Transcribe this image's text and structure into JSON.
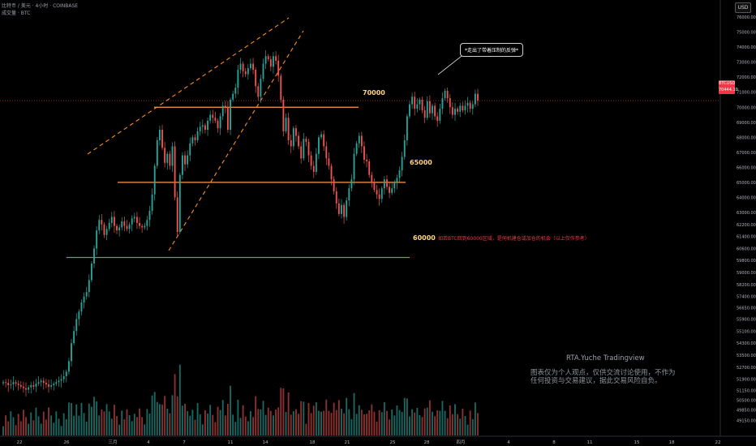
{
  "header": {
    "line1": "比特币 / 美元 · 4小时 · COINBASE",
    "line2": "成交量 · BTC"
  },
  "currency_button": "USD",
  "price_tag": {
    "symbol": "BTCUSD",
    "price": "70444.10",
    "countdown": "11:48"
  },
  "callout_text": "*走出了带着压制的反弹*",
  "levels": [
    {
      "label": "70000",
      "value": 70000
    },
    {
      "label": "65000",
      "value": 65000
    },
    {
      "label": "60000",
      "value": 60000
    }
  ],
  "level_note": "如若BTC回到60000区域，是伺机建仓或加仓的机会（以上仅作参考）",
  "watermark": {
    "title": "RTA.Yuche   Tradingview",
    "body": "图表仅为个人观点，仅供交流讨论使用，不作为任何投资与交易建议，据此交易风险自负。"
  },
  "colors": {
    "up": "#26a69a",
    "down": "#ef5350",
    "level_line": "#ff9a4d",
    "support_line": "#4caf50",
    "trend_line": "#ff8c1a",
    "price_line": "#f23645"
  },
  "chart_data": {
    "type": "candlestick",
    "title": "",
    "xlabel": "",
    "ylabel": "",
    "x_ticks": [
      "22",
      "26",
      "三月",
      "4",
      "7",
      "11",
      "14",
      "18",
      "21",
      "25",
      "28",
      "四月",
      "4",
      "8",
      "11",
      "15",
      "18",
      "22"
    ],
    "y_ticks": [
      76000,
      75000,
      74000,
      73000,
      72000,
      71000,
      70000,
      69000,
      68000,
      67000,
      66000,
      65000,
      64000,
      63000,
      62200,
      61400,
      60600,
      59800,
      59000,
      58200,
      57400,
      56650,
      55900,
      55100,
      54300,
      53500,
      52700,
      51900,
      51150,
      50500,
      49850,
      49150
    ],
    "ylim": [
      48800,
      76600
    ],
    "last_price": 70444.1,
    "close_series": [
      51700,
      51650,
      51500,
      51550,
      51700,
      51600,
      51500,
      51400,
      51300,
      51200,
      51350,
      51500,
      51400,
      51600,
      51700,
      51800,
      51650,
      51550,
      51400,
      51500,
      51600,
      51700,
      51800,
      51900,
      52100,
      52400,
      53100,
      54300,
      55100,
      55900,
      56400,
      57000,
      57400,
      57700,
      58500,
      59600,
      60600,
      61800,
      62500,
      62200,
      61500,
      61900,
      62300,
      62700,
      62100,
      61800,
      62000,
      62400,
      62100,
      61900,
      62200,
      62600,
      62700,
      62300,
      62100,
      62000,
      62100,
      62500,
      63100,
      64200,
      66100,
      67800,
      68500,
      67300,
      66300,
      66900,
      66100,
      67400,
      64000,
      61700,
      65500,
      66800,
      66200,
      66800,
      67600,
      68000,
      67800,
      68400,
      68700,
      68800,
      68500,
      69100,
      69500,
      69300,
      69100,
      68600,
      69400,
      70100,
      70000,
      68500,
      70500,
      70900,
      71300,
      72500,
      72900,
      72400,
      72200,
      72600,
      72900,
      72500,
      71400,
      70700,
      71900,
      72900,
      73400,
      73200,
      72700,
      73400,
      73100,
      72100,
      70500,
      68400,
      69300,
      67800,
      67400,
      68600,
      68100,
      67400,
      66600,
      67900,
      67700,
      66800,
      66100,
      65700,
      66900,
      68000,
      68200,
      67400,
      66600,
      66100,
      65200,
      64400,
      63600,
      62900,
      63500,
      62700,
      63800,
      64600,
      65200,
      66900,
      67600,
      68100,
      67400,
      66500,
      66400,
      65500,
      65000,
      64500,
      64200,
      63900,
      64600,
      65200,
      64700,
      64300,
      64600,
      65000,
      65300,
      65800,
      66700,
      67800,
      69400,
      70200,
      70700,
      69900,
      70200,
      70500,
      69800,
      69300,
      70400,
      69600,
      70100,
      69400,
      69100,
      69900,
      70600,
      71100,
      70600,
      70000,
      69500,
      69900,
      69700,
      70100,
      69800,
      70100,
      70300,
      69900,
      70200,
      70900,
      70444
    ]
  }
}
